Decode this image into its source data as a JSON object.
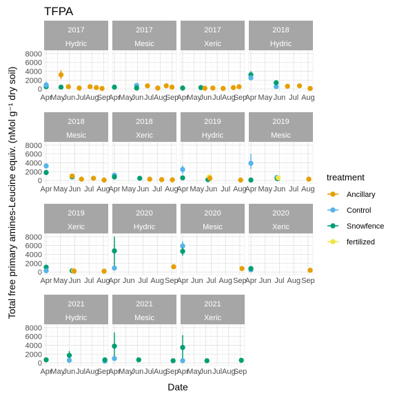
{
  "chart_data": {
    "type": "scatter",
    "title": "TFPA",
    "xlabel": "Date",
    "ylabel": "Total free primary amines-Leucine equiv. (nMol g⁻¹ dry soil)",
    "y_ticks": [
      "0",
      "2000",
      "4000",
      "6000",
      "8000"
    ],
    "ylim": [
      -600,
      8600
    ],
    "grid": true,
    "legend_position": "right",
    "legend": {
      "title": "treatment",
      "entries": [
        {
          "name": "Ancillary",
          "color": "#E69F00"
        },
        {
          "name": "Control",
          "color": "#56B4E9"
        },
        {
          "name": "Snowfence",
          "color": "#009E73"
        },
        {
          "name": "fertilized",
          "color": "#F0E442"
        }
      ]
    },
    "panels": [
      {
        "year": "2017",
        "site": "Hydric",
        "x_ticks": [
          "Apr",
          "May",
          "Jun",
          "Jul",
          "Aug",
          "Sep"
        ],
        "xlim": [
          4.0,
          9.2
        ],
        "points": [
          {
            "t": "Snowfence",
            "x": 4.0,
            "y": 500,
            "lo": 0,
            "hi": 1200
          },
          {
            "t": "Control",
            "x": 4.0,
            "y": 900,
            "lo": 200,
            "hi": 1600
          },
          {
            "t": "Ancillary",
            "x": 5.3,
            "y": 3200,
            "lo": 2200,
            "hi": 4300
          },
          {
            "t": "Snowfence",
            "x": 5.3,
            "y": 400
          },
          {
            "t": "Ancillary",
            "x": 5.95,
            "y": 500
          },
          {
            "t": "Ancillary",
            "x": 6.9,
            "y": 200
          },
          {
            "t": "Ancillary",
            "x": 7.85,
            "y": 500
          },
          {
            "t": "Ancillary",
            "x": 8.4,
            "y": 300
          },
          {
            "t": "Ancillary",
            "x": 8.9,
            "y": 100
          }
        ]
      },
      {
        "year": "2017",
        "site": "Mesic",
        "x_ticks": [
          "Apr",
          "May",
          "Jun",
          "Jul",
          "Aug",
          "Sep"
        ],
        "xlim": [
          4.0,
          9.2
        ],
        "points": [
          {
            "t": "Snowfence",
            "x": 4.0,
            "y": 400
          },
          {
            "t": "Control",
            "x": 5.95,
            "y": 800
          },
          {
            "t": "Snowfence",
            "x": 5.95,
            "y": 200
          },
          {
            "t": "Ancillary",
            "x": 6.9,
            "y": 700
          },
          {
            "t": "Ancillary",
            "x": 7.8,
            "y": 200
          },
          {
            "t": "Ancillary",
            "x": 8.55,
            "y": 700
          },
          {
            "t": "Ancillary",
            "x": 9.05,
            "y": 400
          }
        ]
      },
      {
        "year": "2017",
        "site": "Xeric",
        "x_ticks": [
          "Apr",
          "May",
          "Jun",
          "Jul",
          "Aug",
          "Sep"
        ],
        "xlim": [
          4.0,
          9.2
        ],
        "points": [
          {
            "t": "Snowfence",
            "x": 4.0,
            "y": 200
          },
          {
            "t": "Snowfence",
            "x": 5.6,
            "y": 300
          },
          {
            "t": "Ancillary",
            "x": 5.95,
            "y": 150
          },
          {
            "t": "Ancillary",
            "x": 6.65,
            "y": 200
          },
          {
            "t": "Ancillary",
            "x": 7.55,
            "y": 100
          },
          {
            "t": "Ancillary",
            "x": 8.45,
            "y": 300
          },
          {
            "t": "Ancillary",
            "x": 8.95,
            "y": 500
          }
        ]
      },
      {
        "year": "2018",
        "site": "Hydric",
        "x_ticks": [
          "Apr",
          "May",
          "Jun",
          "Jul",
          "Aug"
        ],
        "xlim": [
          4.0,
          8.45
        ],
        "points": [
          {
            "t": "Snowfence",
            "x": 4.0,
            "y": 3200,
            "lo": 2300,
            "hi": 4000
          },
          {
            "t": "Control",
            "x": 4.0,
            "y": 2500
          },
          {
            "t": "Control",
            "x": 5.9,
            "y": 500
          },
          {
            "t": "Snowfence",
            "x": 5.9,
            "y": 1400
          },
          {
            "t": "Ancillary",
            "x": 6.75,
            "y": 600
          },
          {
            "t": "Ancillary",
            "x": 7.65,
            "y": 700
          },
          {
            "t": "Ancillary",
            "x": 8.45,
            "y": 100
          }
        ]
      },
      {
        "year": "2018",
        "site": "Mesic",
        "x_ticks": [
          "Apr",
          "May",
          "Jun",
          "Jul",
          "Aug"
        ],
        "xlim": [
          4.0,
          8.45
        ],
        "points": [
          {
            "t": "Control",
            "x": 4.0,
            "y": 3300
          },
          {
            "t": "Snowfence",
            "x": 4.0,
            "y": 1800
          },
          {
            "t": "Snowfence",
            "x": 5.95,
            "y": 800
          },
          {
            "t": "Ancillary",
            "x": 5.95,
            "y": 1000
          },
          {
            "t": "Ancillary",
            "x": 6.65,
            "y": 300
          },
          {
            "t": "Ancillary",
            "x": 7.55,
            "y": 500
          },
          {
            "t": "Ancillary",
            "x": 8.35,
            "y": 100
          }
        ]
      },
      {
        "year": "2018",
        "site": "Xeric",
        "x_ticks": [
          "Apr",
          "May",
          "Jun",
          "Jul",
          "Aug"
        ],
        "xlim": [
          4.0,
          8.45
        ],
        "points": [
          {
            "t": "Control",
            "x": 4.0,
            "y": 1200
          },
          {
            "t": "Snowfence",
            "x": 4.0,
            "y": 800
          },
          {
            "t": "Snowfence",
            "x": 5.9,
            "y": 500
          },
          {
            "t": "Ancillary",
            "x": 6.65,
            "y": 300
          },
          {
            "t": "Ancillary",
            "x": 7.55,
            "y": 200
          },
          {
            "t": "Ancillary",
            "x": 8.35,
            "y": 150
          }
        ]
      },
      {
        "year": "2019",
        "site": "Hydric",
        "x_ticks": [
          "Apr",
          "May",
          "Jun",
          "Jul",
          "Aug"
        ],
        "xlim": [
          4.0,
          8.45
        ],
        "points": [
          {
            "t": "Control",
            "x": 4.0,
            "y": 2500,
            "lo": 1500,
            "hi": 3400
          },
          {
            "t": "Snowfence",
            "x": 4.0,
            "y": 600
          },
          {
            "t": "Snowfence",
            "x": 5.9,
            "y": 200
          },
          {
            "t": "fertilized",
            "x": 6.0,
            "y": 800
          },
          {
            "t": "Ancillary",
            "x": 6.05,
            "y": 500
          },
          {
            "t": "Ancillary",
            "x": 8.35,
            "y": 100
          }
        ]
      },
      {
        "year": "2019",
        "site": "Mesic",
        "x_ticks": [
          "Apr",
          "May",
          "Jun",
          "Jul",
          "Aug"
        ],
        "xlim": [
          4.0,
          8.45
        ],
        "points": [
          {
            "t": "Control",
            "x": 4.0,
            "y": 3900,
            "lo": 2600,
            "hi": 6000
          },
          {
            "t": "Snowfence",
            "x": 4.0,
            "y": 100
          },
          {
            "t": "Ancillary",
            "x": 5.95,
            "y": 500
          },
          {
            "t": "Control",
            "x": 5.95,
            "y": 700
          },
          {
            "t": "Snowfence",
            "x": 6.0,
            "y": 400
          },
          {
            "t": "fertilized",
            "x": 6.05,
            "y": 600
          },
          {
            "t": "Ancillary",
            "x": 8.35,
            "y": 300
          }
        ]
      },
      {
        "year": "2019",
        "site": "Xeric",
        "x_ticks": [
          "Apr",
          "May",
          "Jun",
          "Jul",
          "Aug"
        ],
        "xlim": [
          4.0,
          8.45
        ],
        "points": [
          {
            "t": "Snowfence",
            "x": 4.0,
            "y": 1100
          },
          {
            "t": "Control",
            "x": 4.0,
            "y": 300
          },
          {
            "t": "Snowfence",
            "x": 5.95,
            "y": 300
          },
          {
            "t": "fertilized",
            "x": 6.05,
            "y": 300
          },
          {
            "t": "Ancillary",
            "x": 6.1,
            "y": 200
          },
          {
            "t": "Ancillary",
            "x": 8.35,
            "y": 200
          }
        ]
      },
      {
        "year": "2020",
        "site": "Hydric",
        "x_ticks": [
          "Apr",
          "Jun",
          "Jul",
          "Aug",
          "Sep"
        ],
        "xlim": [
          4.0,
          9.0
        ],
        "points": [
          {
            "t": "Snowfence",
            "x": 4.0,
            "y": 4800,
            "lo": 1200,
            "hi": 8000
          },
          {
            "t": "Control",
            "x": 4.0,
            "y": 900
          },
          {
            "t": "Ancillary",
            "x": 9.0,
            "y": 1200
          }
        ]
      },
      {
        "year": "2020",
        "site": "Mesic",
        "x_ticks": [
          "Apr",
          "Jun",
          "Jul",
          "Aug",
          "Sep"
        ],
        "xlim": [
          4.0,
          9.0
        ],
        "points": [
          {
            "t": "Control",
            "x": 4.0,
            "y": 5900,
            "lo": 4700,
            "hi": 7000
          },
          {
            "t": "Snowfence",
            "x": 4.0,
            "y": 4700,
            "lo": 3700,
            "hi": 5500
          },
          {
            "t": "Ancillary",
            "x": 9.0,
            "y": 800
          }
        ]
      },
      {
        "year": "2020",
        "site": "Xeric",
        "x_ticks": [
          "Apr",
          "Jun",
          "Jul",
          "Aug",
          "Sep"
        ],
        "xlim": [
          4.0,
          9.0
        ],
        "points": [
          {
            "t": "Control",
            "x": 4.0,
            "y": 500
          },
          {
            "t": "Snowfence",
            "x": 4.0,
            "y": 800
          },
          {
            "t": "Ancillary",
            "x": 9.0,
            "y": 400
          }
        ]
      },
      {
        "year": "2021",
        "site": "Hydric",
        "x_ticks": [
          "Apr",
          "May",
          "Jun",
          "Jul",
          "Aug",
          "Sep"
        ],
        "xlim": [
          4.0,
          9.0
        ],
        "points": [
          {
            "t": "Snowfence",
            "x": 4.0,
            "y": 700
          },
          {
            "t": "Snowfence",
            "x": 5.95,
            "y": 1700,
            "lo": 700,
            "hi": 2700
          },
          {
            "t": "Control",
            "x": 5.95,
            "y": 600
          },
          {
            "t": "Control",
            "x": 8.95,
            "y": 400
          },
          {
            "t": "Snowfence",
            "x": 8.95,
            "y": 700
          }
        ]
      },
      {
        "year": "2021",
        "site": "Mesic",
        "x_ticks": [
          "Apr",
          "May",
          "Jun",
          "Jul",
          "Aug",
          "Sep"
        ],
        "xlim": [
          4.0,
          9.0
        ],
        "points": [
          {
            "t": "Snowfence",
            "x": 4.0,
            "y": 3800,
            "lo": 1000,
            "hi": 6900
          },
          {
            "t": "Control",
            "x": 4.0,
            "y": 1000
          },
          {
            "t": "Snowfence",
            "x": 6.05,
            "y": 700
          },
          {
            "t": "Snowfence",
            "x": 8.95,
            "y": 500
          }
        ]
      },
      {
        "year": "2021",
        "site": "Xeric",
        "x_ticks": [
          "Apr",
          "May",
          "Jun",
          "Jul",
          "Aug",
          "Sep"
        ],
        "xlim": [
          4.0,
          9.0
        ],
        "points": [
          {
            "t": "Snowfence",
            "x": 4.0,
            "y": 3500,
            "lo": 600,
            "hi": 6300
          },
          {
            "t": "Control",
            "x": 4.0,
            "y": 500
          },
          {
            "t": "Snowfence",
            "x": 6.05,
            "y": 500
          },
          {
            "t": "Snowfence",
            "x": 8.95,
            "y": 600
          }
        ]
      }
    ]
  }
}
